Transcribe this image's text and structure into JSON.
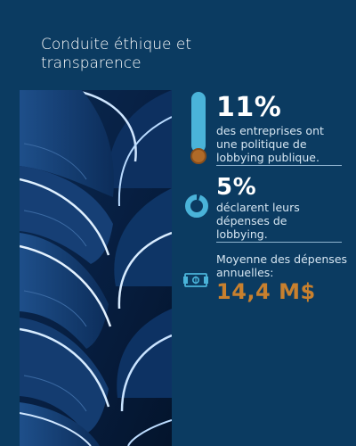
{
  "title": "Conduite éthique et transparence",
  "colors": {
    "background": "#0b3b61",
    "accent_light_blue": "#4ab3d9",
    "accent_orange": "#c8802e",
    "text": "#ffffff"
  },
  "stats": [
    {
      "value": "11%",
      "description": "des entreprises ont une politique de lobbying publique.",
      "icon": "thermometer-icon"
    },
    {
      "value": "5%",
      "description": "déclarent leurs dépenses de lobbying.",
      "icon": "donut-chart-icon"
    },
    {
      "value": "14,4 M$",
      "description": "Moyenne des dépenses annuelles:",
      "icon": "money-icon"
    }
  ],
  "photo": {
    "subject": "abstract-spiral-staircase-image"
  }
}
